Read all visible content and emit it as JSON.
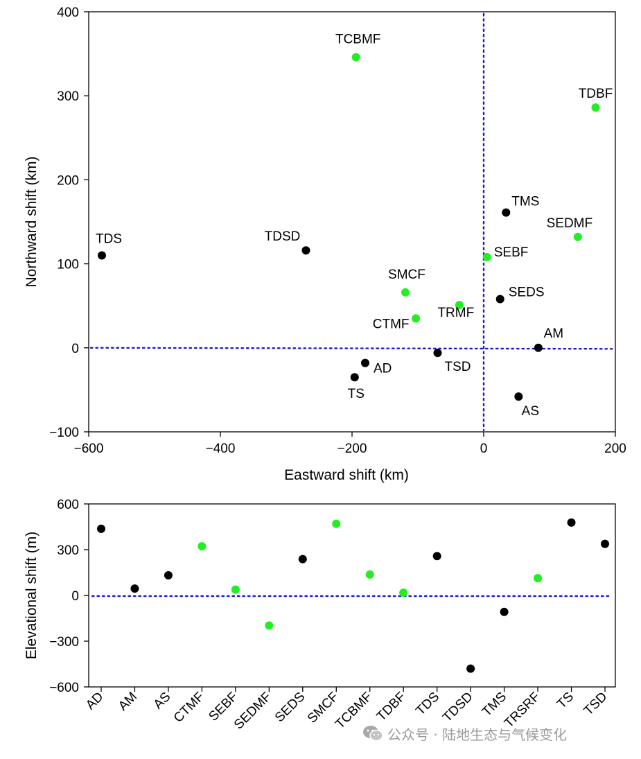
{
  "chart_data": [
    {
      "type": "scatter",
      "xlabel": "Eastward shift (km)",
      "ylabel": "Northward shift (km)",
      "xlim": [
        -600,
        200
      ],
      "ylim": [
        -100,
        400
      ],
      "xticks": [
        "−600",
        "−400",
        "−200",
        "0",
        "200"
      ],
      "yticks": [
        "−100",
        "0",
        "100",
        "200",
        "300",
        "400"
      ],
      "reference_lines": {
        "x": 0,
        "y": 0
      },
      "colors": {
        "black": "#000000",
        "green": "#22ee22",
        "reference": "#1a1ad6"
      },
      "points": [
        {
          "label": "TCBMF",
          "x": -194,
          "y": 346,
          "color": "green"
        },
        {
          "label": "TDBF",
          "x": 170,
          "y": 286,
          "color": "green"
        },
        {
          "label": "TMS",
          "x": 34,
          "y": 161,
          "color": "black"
        },
        {
          "label": "SEDMF",
          "x": 143,
          "y": 132,
          "color": "green"
        },
        {
          "label": "TDS",
          "x": -580,
          "y": 110,
          "color": "black"
        },
        {
          "label": "TDSD",
          "x": -270,
          "y": 116,
          "color": "black"
        },
        {
          "label": "SEBF",
          "x": 5,
          "y": 108,
          "color": "green"
        },
        {
          "label": "SMCF",
          "x": -119,
          "y": 66,
          "color": "green"
        },
        {
          "label": "SEDS",
          "x": 25,
          "y": 58,
          "color": "black"
        },
        {
          "label": "TRMF",
          "x": -37,
          "y": 51,
          "color": "green"
        },
        {
          "label": "CTMF",
          "x": -103,
          "y": 35,
          "color": "green"
        },
        {
          "label": "AM",
          "x": 83,
          "y": 0,
          "color": "black"
        },
        {
          "label": "TSD",
          "x": -70,
          "y": -6,
          "color": "black"
        },
        {
          "label": "AD",
          "x": -180,
          "y": -18,
          "color": "black"
        },
        {
          "label": "TS",
          "x": -196,
          "y": -35,
          "color": "black"
        },
        {
          "label": "AS",
          "x": 53,
          "y": -58,
          "color": "black"
        }
      ]
    },
    {
      "type": "scatter",
      "xlabel": "",
      "ylabel": "Elevational shift (m)",
      "ylim": [
        -600,
        600
      ],
      "yticks": [
        "−600",
        "−300",
        "0",
        "300",
        "600"
      ],
      "reference_lines": {
        "y": 0
      },
      "categories": [
        "AD",
        "AM",
        "AS",
        "CTMF",
        "SEBF",
        "SEDMF",
        "SEDS",
        "SMCF",
        "TCBMF",
        "TDBF",
        "TDS",
        "TDSD",
        "TMS",
        "TRSRF",
        "TS",
        "TSD"
      ],
      "values": [
        437,
        45,
        132,
        322,
        38,
        -197,
        238,
        470,
        137,
        18,
        258,
        -480,
        -108,
        113,
        478,
        338
      ],
      "point_colors": [
        "black",
        "black",
        "black",
        "green",
        "green",
        "green",
        "black",
        "green",
        "green",
        "green",
        "black",
        "black",
        "black",
        "green",
        "black",
        "black"
      ]
    }
  ],
  "watermark": {
    "text": "公众号 · 陆地生态与气候变化",
    "icon": "wechat-icon"
  }
}
